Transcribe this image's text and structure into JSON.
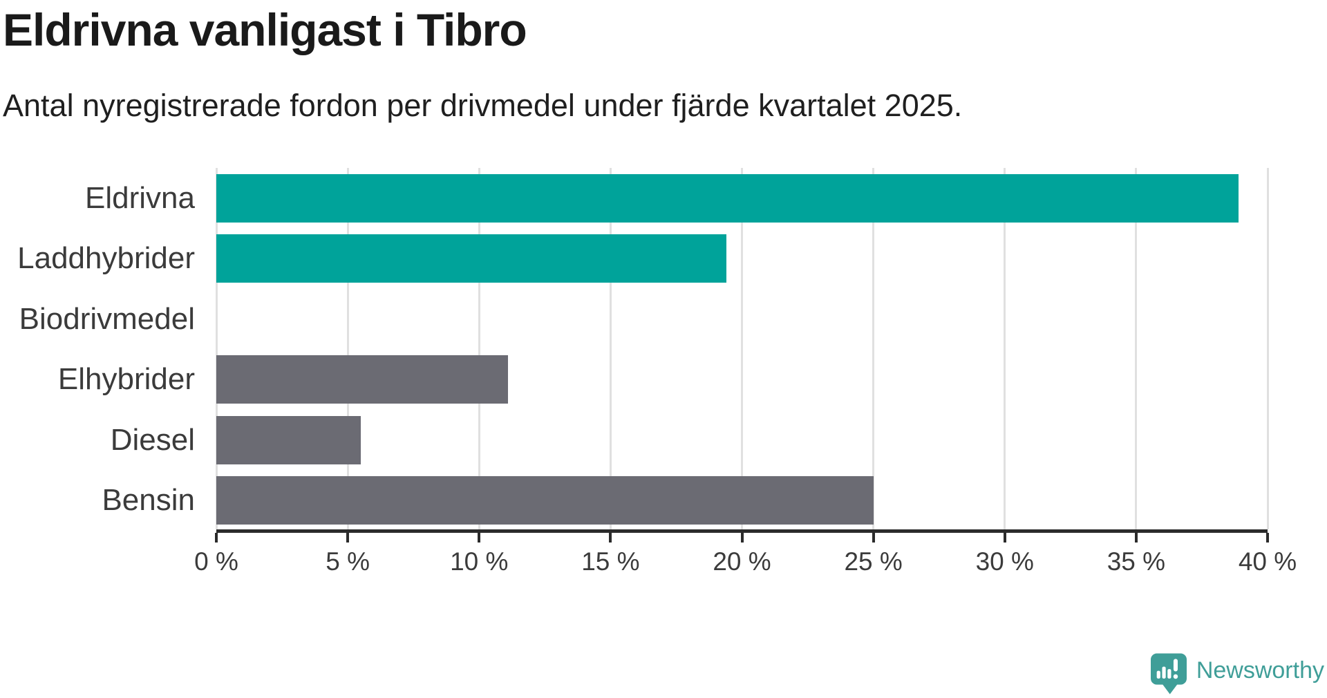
{
  "header": {
    "title": "Eldrivna vanligast i Tibro",
    "subtitle": "Antal nyregistrerade fordon per drivmedel under fjärde kvartalet 2025."
  },
  "chart_data": {
    "type": "bar",
    "orientation": "horizontal",
    "title": "Eldrivna vanligast i Tibro",
    "subtitle": "Antal nyregistrerade fordon per drivmedel under fjärde kvartalet 2025.",
    "categories": [
      "Eldrivna",
      "Laddhybrider",
      "Biodrivmedel",
      "Elhybrider",
      "Diesel",
      "Bensin"
    ],
    "values": [
      38.9,
      19.4,
      0,
      11.1,
      5.5,
      25.0
    ],
    "unit": "%",
    "xlabel": "",
    "ylabel": "",
    "xlim": [
      0,
      40
    ],
    "x_ticks": [
      0,
      5,
      10,
      15,
      20,
      25,
      30,
      35,
      40
    ],
    "x_tick_labels": [
      "0 %",
      "5 %",
      "10 %",
      "15 %",
      "20 %",
      "25 %",
      "30 %",
      "35 %",
      "40 %"
    ],
    "bar_colors": [
      "#00a39a",
      "#00a39a",
      "#00a39a",
      "#6b6b73",
      "#6b6b73",
      "#6b6b73"
    ],
    "grid": true,
    "legend": "none"
  },
  "colors": {
    "highlight_teal": "#00a39a",
    "muted_gray": "#6b6b73",
    "brand_teal": "#3f9e98",
    "gridline": "#e0e0e0",
    "axis": "#2b2b2b"
  },
  "footer": {
    "brand_name": "Newsworthy"
  }
}
